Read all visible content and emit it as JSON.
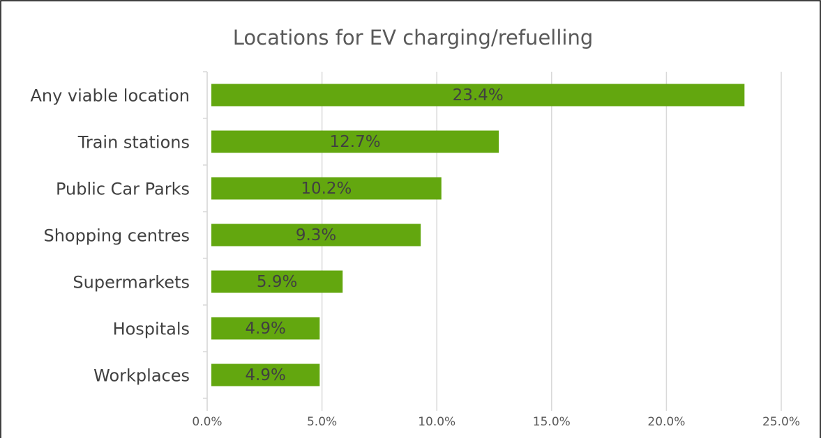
{
  "chart_data": {
    "type": "bar",
    "orientation": "horizontal",
    "title": "Locations for EV charging/refuelling",
    "categories": [
      "Any viable location",
      "Train stations",
      "Public Car Parks",
      "Shopping centres",
      "Supermarkets",
      "Hospitals",
      "Workplaces"
    ],
    "values": [
      23.4,
      12.7,
      10.2,
      9.3,
      5.9,
      4.9,
      4.9
    ],
    "value_labels": [
      "23.4%",
      "12.7%",
      "10.2%",
      "9.3%",
      "5.9%",
      "4.9%",
      "4.9%"
    ],
    "color": "#63a70f",
    "xlim": [
      0,
      25
    ],
    "xticks": [
      {
        "value": 0,
        "label": "0.0%"
      },
      {
        "value": 5,
        "label": "5.0%"
      },
      {
        "value": 10,
        "label": "10.0%"
      },
      {
        "value": 15,
        "label": "15.0%"
      },
      {
        "value": 20,
        "label": "20.0%"
      },
      {
        "value": 25,
        "label": "25.0%"
      }
    ],
    "grid": true
  }
}
